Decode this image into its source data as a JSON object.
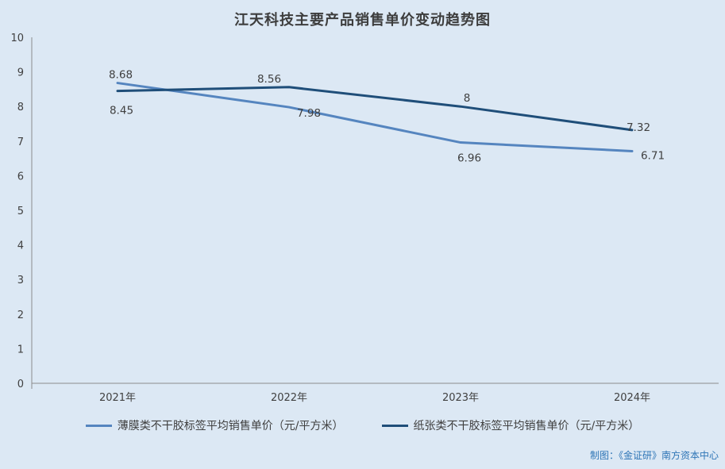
{
  "page": {
    "background_color": "#dce8f4"
  },
  "chart_data": {
    "type": "line",
    "title": "江天科技主要产品销售单价变动趋势图",
    "categories": [
      "2021年",
      "2022年",
      "2023年",
      "2024年"
    ],
    "series": [
      {
        "name": "薄膜类不干胶标签平均销售单价（元/平方米）",
        "name_id": "film-label-series",
        "color": "#5585bf",
        "values": [
          8.68,
          7.98,
          6.96,
          6.71
        ],
        "point_labels": [
          "8.68",
          "7.98",
          "6.96",
          "6.71"
        ]
      },
      {
        "name": "纸张类不干胶标签平均销售单价（元/平方米）",
        "name_id": "paper-label-series",
        "color": "#1f4e79",
        "values": [
          8.45,
          8.56,
          8,
          7.32
        ],
        "point_labels": [
          "8.45",
          "8.56",
          "8",
          "7.32"
        ]
      }
    ],
    "xlabel": "",
    "ylabel": "",
    "ylim": [
      0,
      10
    ],
    "y_tick_step": 1,
    "y_tick_labels": [
      "0",
      "1",
      "2",
      "3",
      "4",
      "5",
      "6",
      "7",
      "8",
      "9",
      "10"
    ],
    "grid": false,
    "legend_position": "bottom",
    "axis_color": "#8c8c8c",
    "tick_label_color": "#404040",
    "data_label_color": "#3f3f3f"
  },
  "footer": {
    "attribution": "制图：《金证研》南方资本中心",
    "color": "#2e75b6"
  }
}
